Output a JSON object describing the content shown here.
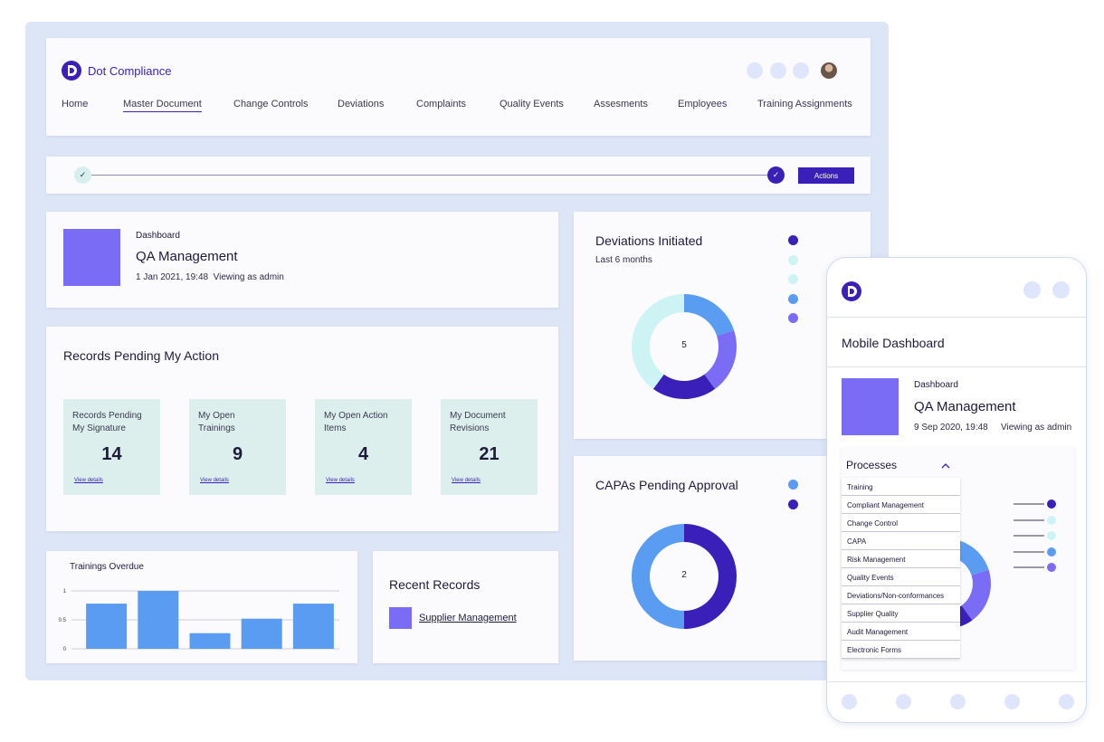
{
  "app": {
    "brand": "Dot Compliance"
  },
  "nav": [
    "Home",
    "Master Document",
    "Change Controls",
    "Deviations",
    "Complaints",
    "Quality Events",
    "Assesments",
    "Employees",
    "Training Assignments"
  ],
  "progress": {
    "actions_label": "Actions",
    "check": "✓"
  },
  "dashboard": {
    "label": "Dashboard",
    "title": "QA Management",
    "date": "1 Jan 2021, 19:48",
    "viewing": "Viewing as admin"
  },
  "records": {
    "title": "Records Pending My Action",
    "stats": [
      {
        "label": "Records Pending My Signature",
        "value": "14",
        "link": "View details"
      },
      {
        "label": "My Open Trainings",
        "value": "9",
        "link": "View details"
      },
      {
        "label": "My Open Action Items",
        "value": "4",
        "link": "View details"
      },
      {
        "label": "My Document Revisions",
        "value": "21",
        "link": "View details"
      }
    ]
  },
  "trainings_overdue": {
    "title": "Trainings Overdue",
    "chart_data": {
      "type": "bar",
      "title": "Trainings Overdue",
      "categories": [
        "",
        "",
        "",
        "",
        ""
      ],
      "values": [
        0.78,
        1.0,
        0.27,
        0.52,
        0.78
      ],
      "ylim": [
        0,
        1
      ],
      "yticks": [
        "0",
        "0.5",
        "1"
      ],
      "grid": true,
      "color": "#5b9cf3"
    }
  },
  "recent_records": {
    "title": "Recent Records",
    "item": "Supplier Management"
  },
  "deviations": {
    "title": "Deviations Initiated",
    "subtitle": "Last 6 months",
    "center": "5",
    "chart_data": {
      "type": "pie",
      "values": [
        1,
        1,
        1,
        2
      ],
      "colors": [
        "#5b9cf3",
        "#7b6cf6",
        "#3a1fb8",
        "#cdf3f4"
      ],
      "legend_colors": [
        "#3a1fb8",
        "#cdf3f4",
        "#cdf3f4",
        "#5b9cf3",
        "#7b6cf6"
      ],
      "legend_position": "right"
    }
  },
  "capas": {
    "title": "CAPAs Pending Approval",
    "center": "2",
    "chart_data": {
      "type": "pie",
      "values": [
        1,
        1
      ],
      "colors": [
        "#3a1fb8",
        "#5b9cf3"
      ],
      "legend_colors": [
        "#5b9cf3",
        "#3a1fb8"
      ],
      "legend_position": "right"
    }
  },
  "mobile": {
    "title": "Mobile Dashboard",
    "dashboard": {
      "label": "Dashboard",
      "title": "QA Management",
      "date": "9 Sep 2020, 19:48",
      "viewing": "Viewing as admin"
    },
    "processes": {
      "label": "Processes",
      "items": [
        "Training",
        "Compliant Management",
        "Change Control",
        "CAPA",
        "Risk Management",
        "Quality Events",
        "Deviations/Non-conformances",
        "Supplier Quality",
        "Audit Management",
        "Electronic Forms"
      ]
    },
    "legend_colors": [
      "#3a1fb8",
      "#cdf3f4",
      "#cdf3f4",
      "#5b9cf3",
      "#7b6cf6"
    ]
  },
  "colors": {
    "brand": "#3a1fb8",
    "accent": "#7b6cf6",
    "blue": "#5b9cf3",
    "mint": "#dcefed",
    "backdrop": "#dde6f7"
  }
}
